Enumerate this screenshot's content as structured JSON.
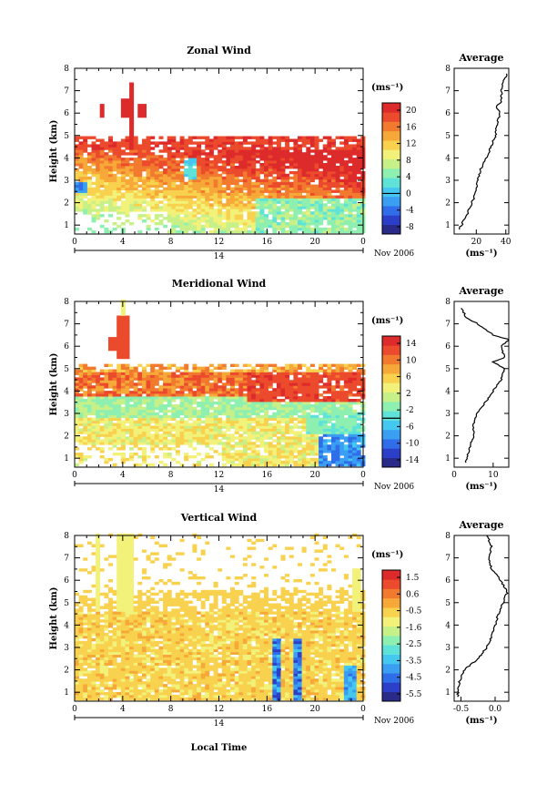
{
  "figure": {
    "date_label": "Nov 2006",
    "day_label": "14",
    "xlabel": "Local Time",
    "ylabel": "Height (km)"
  },
  "chart_data": [
    {
      "type": "heatmap",
      "title": "Zonal Wind",
      "xlabel": "Local Time",
      "ylabel": "Height (km)",
      "x_ticks": [
        "0",
        "4",
        "8",
        "12",
        "16",
        "20",
        "0"
      ],
      "y_ticks": [
        "1",
        "2",
        "3",
        "4",
        "5",
        "6",
        "7",
        "8"
      ],
      "xlim": [
        0,
        24
      ],
      "ylim": [
        0.6,
        8
      ],
      "colorbar": {
        "unit": "(ms⁻¹)",
        "ticks": [
          "20",
          "16",
          "12",
          "8",
          "4",
          "0",
          "-4",
          "-8"
        ],
        "range": [
          -10,
          22
        ]
      },
      "average": {
        "title": "Average",
        "xlabel": "(ms⁻¹)",
        "x_ticks": [
          "20",
          "40"
        ],
        "xlim": [
          5,
          42
        ],
        "height_km": [
          0.8,
          1.0,
          1.5,
          2.0,
          2.5,
          3.0,
          3.5,
          4.0,
          4.5,
          5.0,
          5.5,
          6.0,
          6.3,
          6.5,
          7.0,
          7.5,
          7.8
        ],
        "speed_ms": [
          8,
          10,
          14,
          17,
          20,
          21,
          23,
          27,
          30,
          33,
          34,
          36,
          33,
          37,
          37,
          39,
          41
        ]
      }
    },
    {
      "type": "heatmap",
      "title": "Meridional Wind",
      "xlabel": "Local Time",
      "ylabel": "Height (km)",
      "x_ticks": [
        "0",
        "4",
        "8",
        "12",
        "16",
        "20",
        "0"
      ],
      "y_ticks": [
        "1",
        "2",
        "3",
        "4",
        "5",
        "6",
        "7",
        "8"
      ],
      "xlim": [
        0,
        24
      ],
      "ylim": [
        0.6,
        8
      ],
      "colorbar": {
        "unit": "(ms⁻¹)",
        "ticks": [
          "14",
          "10",
          "6",
          "2",
          "-2",
          "-6",
          "-10",
          "-14"
        ],
        "range": [
          -16,
          17
        ]
      },
      "average": {
        "title": "Average",
        "xlabel": "(ms⁻¹)",
        "x_ticks": [
          "0",
          "10"
        ],
        "xlim": [
          0,
          14
        ],
        "height_km": [
          0.8,
          1.5,
          2.0,
          2.5,
          3.0,
          3.5,
          4.0,
          4.5,
          5.0,
          5.3,
          5.5,
          6.0,
          6.3,
          6.5,
          7.0,
          7.3,
          7.7
        ],
        "speed_ms": [
          3,
          4,
          5,
          5,
          6,
          8,
          10,
          12,
          13,
          10,
          13,
          12,
          14,
          10,
          6,
          3,
          2
        ]
      }
    },
    {
      "type": "heatmap",
      "title": "Vertical Wind",
      "xlabel": "Local Time",
      "ylabel": "Height (km)",
      "x_ticks": [
        "0",
        "4",
        "8",
        "12",
        "16",
        "20",
        "0"
      ],
      "y_ticks": [
        "1",
        "2",
        "3",
        "4",
        "5",
        "6",
        "7",
        "8"
      ],
      "xlim": [
        0,
        24
      ],
      "ylim": [
        0.6,
        8
      ],
      "colorbar": {
        "unit": "(ms⁻¹)",
        "ticks": [
          "1.5",
          "0.6",
          "-0.5",
          "-1.6",
          "-2.5",
          "-3.5",
          "-4.5",
          "-5.5"
        ],
        "range": [
          -6,
          2
        ]
      },
      "average": {
        "title": "Average",
        "xlabel": "(ms⁻¹)",
        "x_ticks": [
          "-0.5",
          "0.0"
        ],
        "xlim": [
          -0.6,
          0.2
        ],
        "height_km": [
          0.8,
          1.5,
          2.0,
          2.5,
          3.0,
          3.5,
          4.0,
          4.5,
          5.0,
          5.5,
          6.0,
          6.5,
          7.0,
          7.5,
          8.0
        ],
        "speed_ms": [
          -0.55,
          -0.52,
          -0.45,
          -0.25,
          -0.12,
          -0.05,
          0.0,
          0.05,
          0.12,
          0.18,
          0.08,
          -0.05,
          -0.1,
          -0.05,
          -0.12
        ]
      }
    }
  ]
}
